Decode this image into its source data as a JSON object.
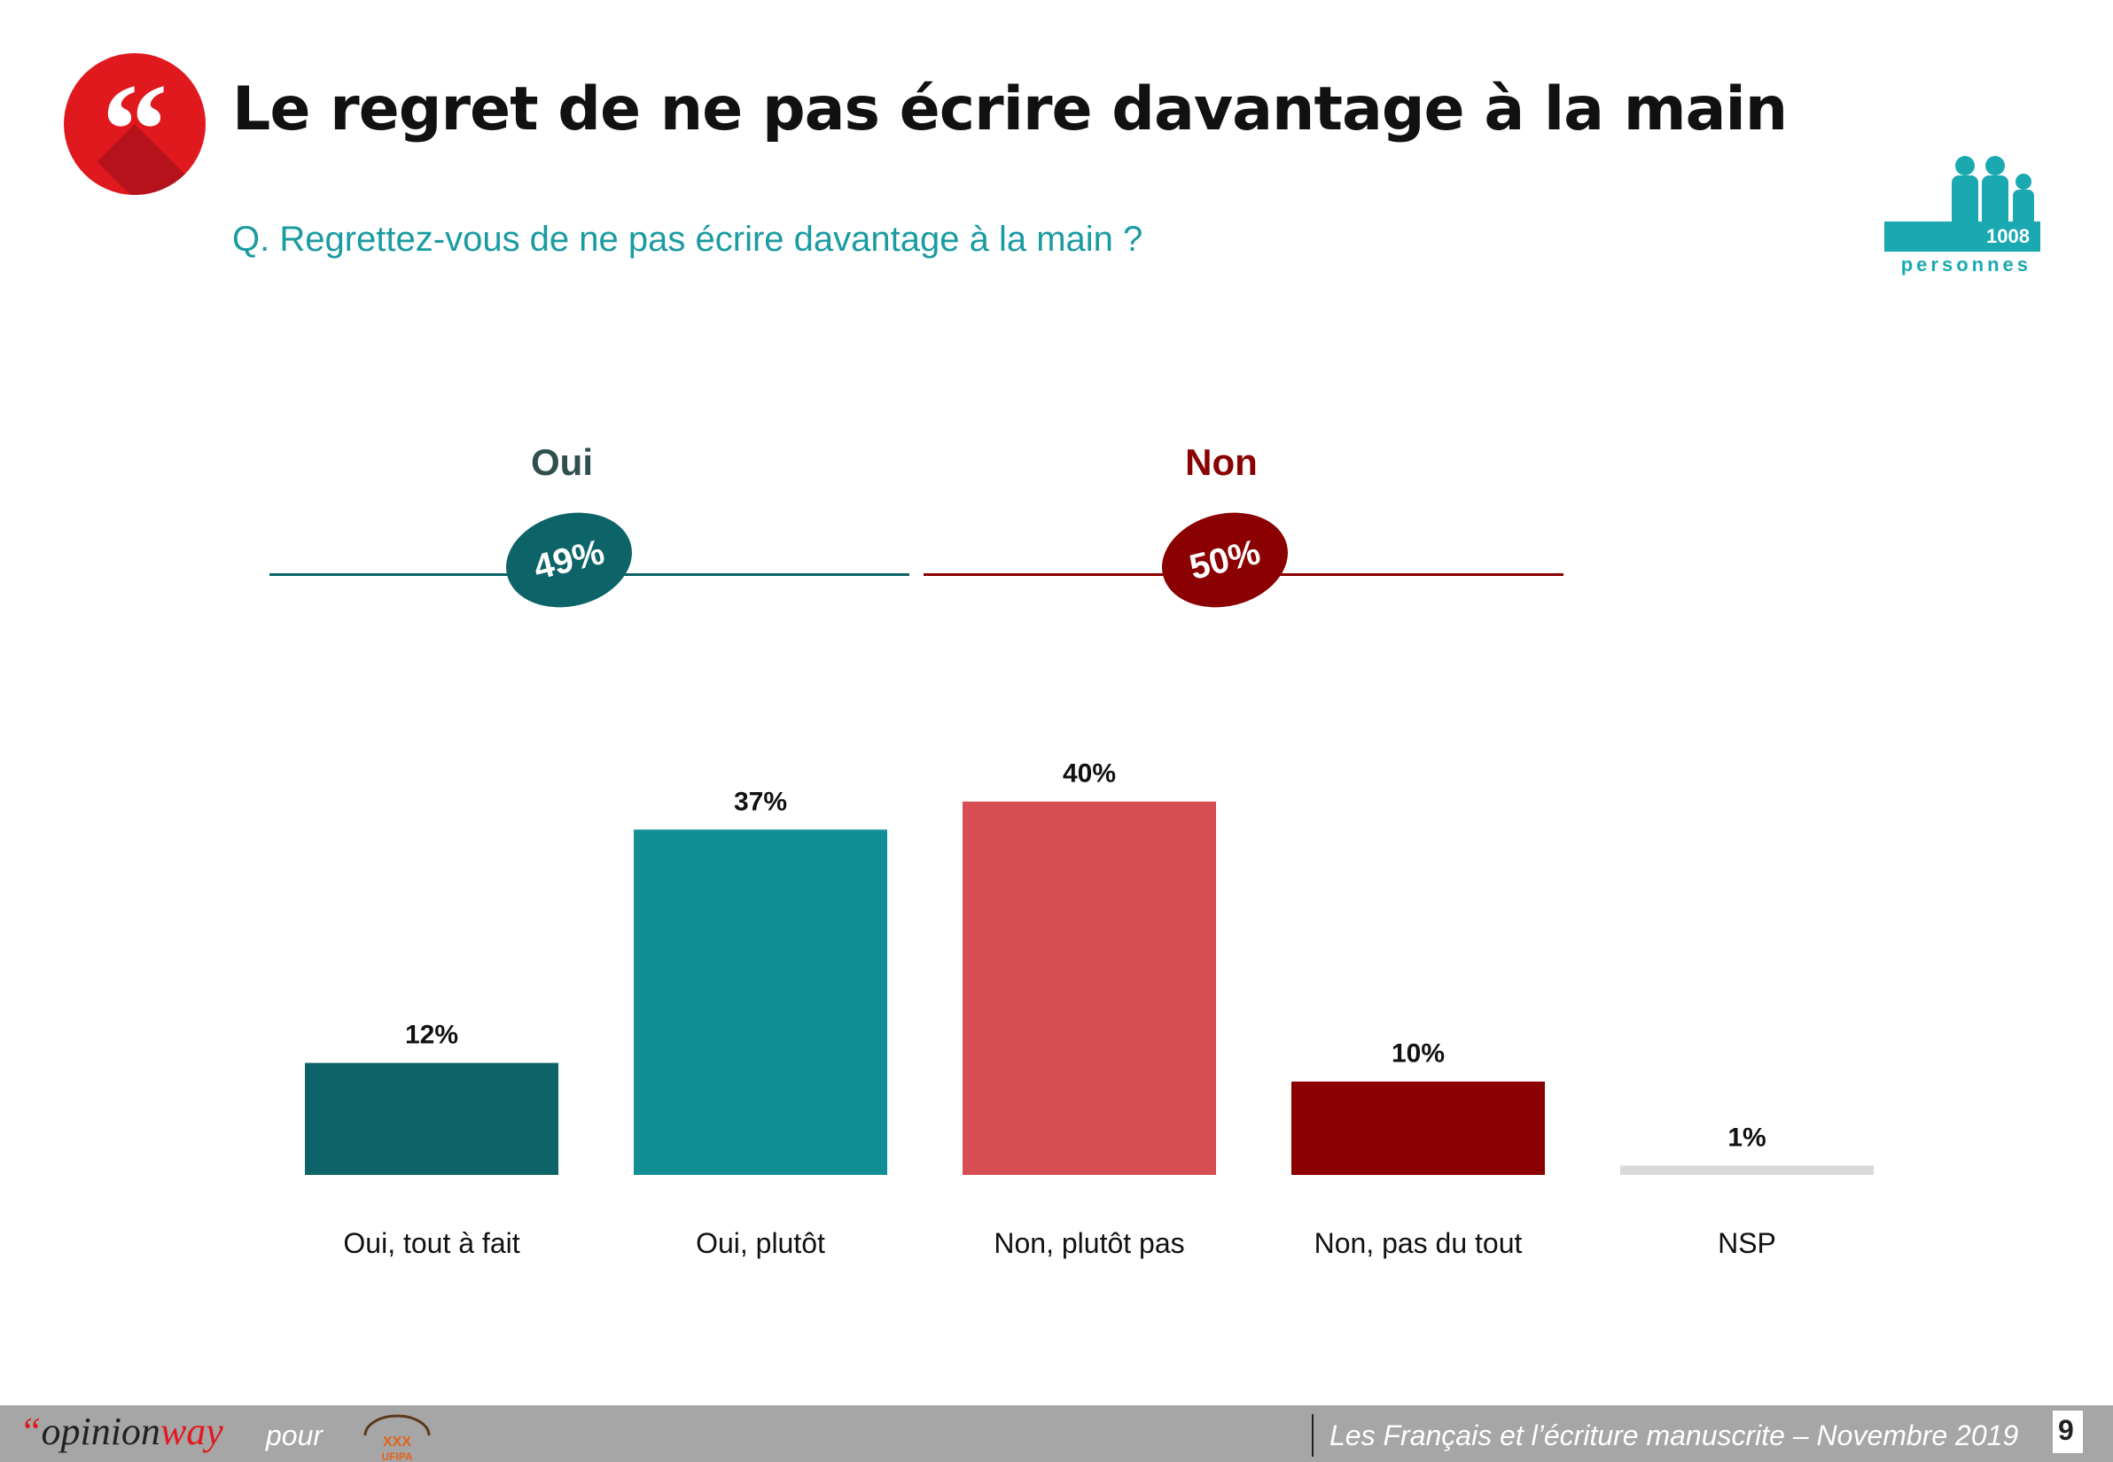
{
  "header": {
    "quote_glyph": "“",
    "title": "Le regret de ne pas écrire davantage à la main",
    "question": "Q. Regrettez-vous de ne pas écrire davantage à la main ?"
  },
  "sample": {
    "count": "1008",
    "unit": "personnes",
    "icon": "people-icon"
  },
  "groups": {
    "oui": {
      "label": "Oui",
      "total": "49%",
      "color": "#0d6468"
    },
    "non": {
      "label": "Non",
      "total": "50%",
      "color": "#8b0000"
    }
  },
  "chart_data": {
    "type": "bar",
    "title": "",
    "xlabel": "",
    "ylabel": "",
    "ylim": [
      0,
      45
    ],
    "grid": false,
    "categories": [
      "Oui, tout à fait",
      "Oui, plutôt",
      "Non, plutôt pas",
      "Non, pas du tout",
      "NSP"
    ],
    "values": [
      12,
      37,
      40,
      10,
      1
    ],
    "value_labels": [
      "12%",
      "37%",
      "40%",
      "10%",
      "1%"
    ],
    "colors": [
      "#0d6468",
      "#118f95",
      "#d64d52",
      "#8b0000",
      "#d9d9d9"
    ]
  },
  "footer": {
    "brand_quote": "“",
    "brand_a": "opinion",
    "brand_b": "way",
    "pour": "pour",
    "partner_logo": "ufipa-logo",
    "caption": "Les Français et l’écriture manuscrite – Novembre 2019",
    "page": "9"
  }
}
